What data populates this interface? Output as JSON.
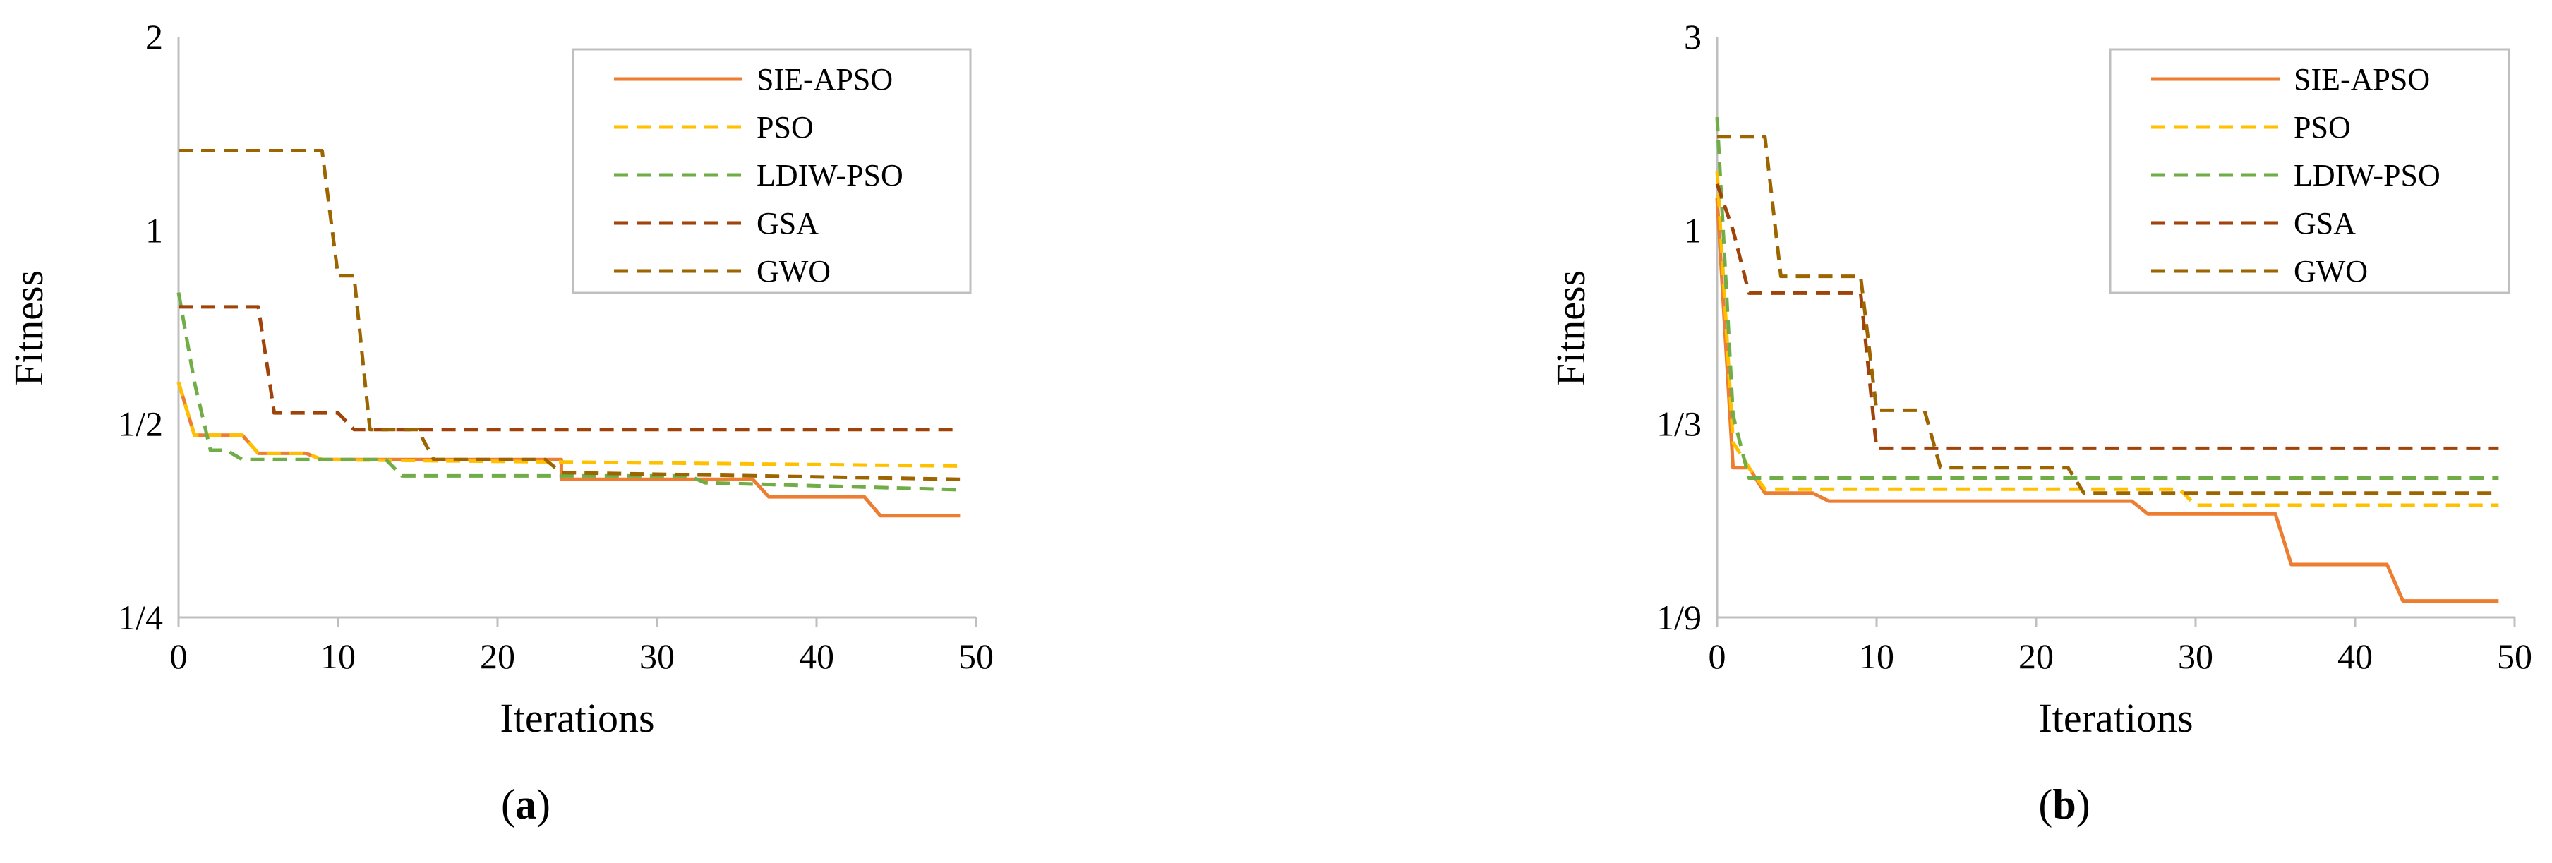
{
  "chart_data": [
    {
      "type": "line",
      "caption_open": "(",
      "caption_letter": "a",
      "caption_close": ")",
      "xlabel": "Iterations",
      "ylabel": "Fitness",
      "xlim": [
        0,
        50
      ],
      "ylim": [
        0.25,
        2
      ],
      "yscale": "log2",
      "xticks": [
        0,
        10,
        20,
        30,
        40,
        50
      ],
      "xtick_labels": [
        "0",
        "10",
        "20",
        "30",
        "40",
        "50"
      ],
      "yticks": [
        0.25,
        0.5,
        1,
        2
      ],
      "ytick_labels": [
        "1/4",
        "1/2",
        "1",
        "2"
      ],
      "grid": false,
      "legend_position": "top-right",
      "series": [
        {
          "name": "SIE-APSO",
          "color": "#ED7D31",
          "dash": "solid",
          "points": [
            [
              0,
              0.58
            ],
            [
              1,
              0.48
            ],
            [
              4,
              0.48
            ],
            [
              5,
              0.45
            ],
            [
              8,
              0.45
            ],
            [
              9,
              0.44
            ],
            [
              24,
              0.44
            ],
            [
              24,
              0.41
            ],
            [
              36,
              0.41
            ],
            [
              37,
              0.385
            ],
            [
              43,
              0.385
            ],
            [
              44,
              0.36
            ],
            [
              49,
              0.36
            ]
          ]
        },
        {
          "name": "PSO",
          "color": "#FFC000",
          "dash": "dashed",
          "points": [
            [
              0,
              0.58
            ],
            [
              1,
              0.48
            ],
            [
              4,
              0.48
            ],
            [
              5,
              0.45
            ],
            [
              8,
              0.45
            ],
            [
              9,
              0.44
            ],
            [
              49,
              0.43
            ]
          ]
        },
        {
          "name": "LDIW-PSO",
          "color": "#70AD47",
          "dash": "dashed",
          "points": [
            [
              0,
              0.8
            ],
            [
              1,
              0.58
            ],
            [
              2,
              0.455
            ],
            [
              3,
              0.455
            ],
            [
              4,
              0.44
            ],
            [
              13,
              0.44
            ],
            [
              14,
              0.415
            ],
            [
              32,
              0.415
            ],
            [
              33,
              0.405
            ],
            [
              49,
              0.395
            ]
          ]
        },
        {
          "name": "GSA",
          "color": "#A0430A",
          "dash": "dashed",
          "points": [
            [
              0,
              0.76
            ],
            [
              5,
              0.76
            ],
            [
              6,
              0.52
            ],
            [
              10,
              0.52
            ],
            [
              11,
              0.49
            ],
            [
              49,
              0.49
            ]
          ]
        },
        {
          "name": "GWO",
          "color": "#9C6500",
          "dash": "dashed",
          "points": [
            [
              0,
              1.33
            ],
            [
              9,
              1.33
            ],
            [
              10,
              0.85
            ],
            [
              11,
              0.85
            ],
            [
              12,
              0.49
            ],
            [
              15,
              0.49
            ],
            [
              16,
              0.44
            ],
            [
              23,
              0.44
            ],
            [
              24,
              0.42
            ],
            [
              49,
              0.41
            ]
          ]
        }
      ]
    },
    {
      "type": "line",
      "caption_open": "(",
      "caption_letter": "b",
      "caption_close": ")",
      "xlabel": "Iterations",
      "ylabel": "Fitness",
      "xlim": [
        0,
        50
      ],
      "ylim": [
        0.1111,
        3
      ],
      "yscale": "log3",
      "xticks": [
        0,
        10,
        20,
        30,
        40,
        50
      ],
      "xtick_labels": [
        "0",
        "10",
        "20",
        "30",
        "40",
        "50"
      ],
      "yticks": [
        0.1111,
        0.3333,
        1,
        3
      ],
      "ytick_labels": [
        "1/9",
        "1/3",
        "1",
        "3"
      ],
      "grid": false,
      "legend_position": "top-right",
      "series": [
        {
          "name": "SIE-APSO",
          "color": "#ED7D31",
          "dash": "solid",
          "points": [
            [
              0,
              1.2
            ],
            [
              1,
              0.26
            ],
            [
              2,
              0.26
            ],
            [
              3,
              0.225
            ],
            [
              6,
              0.225
            ],
            [
              7,
              0.215
            ],
            [
              26,
              0.215
            ],
            [
              27,
              0.2
            ],
            [
              35,
              0.2
            ],
            [
              36,
              0.15
            ],
            [
              42,
              0.15
            ],
            [
              43,
              0.122
            ],
            [
              49,
              0.122
            ]
          ]
        },
        {
          "name": "PSO",
          "color": "#FFC000",
          "dash": "dashed",
          "points": [
            [
              0,
              1.4
            ],
            [
              1,
              0.3
            ],
            [
              2,
              0.26
            ],
            [
              3,
              0.23
            ],
            [
              29,
              0.23
            ],
            [
              30,
              0.21
            ],
            [
              49,
              0.21
            ]
          ]
        },
        {
          "name": "LDIW-PSO",
          "color": "#70AD47",
          "dash": "dashed",
          "points": [
            [
              0,
              1.9
            ],
            [
              1,
              0.35
            ],
            [
              2,
              0.245
            ],
            [
              49,
              0.245
            ]
          ]
        },
        {
          "name": "GSA",
          "color": "#A0430A",
          "dash": "dashed",
          "points": [
            [
              0,
              1.3
            ],
            [
              1,
              1.0
            ],
            [
              2,
              0.7
            ],
            [
              9,
              0.7
            ],
            [
              10,
              0.29
            ],
            [
              49,
              0.29
            ]
          ]
        },
        {
          "name": "GWO",
          "color": "#9C6500",
          "dash": "dashed",
          "points": [
            [
              0,
              1.7
            ],
            [
              3,
              1.7
            ],
            [
              4,
              0.77
            ],
            [
              9,
              0.77
            ],
            [
              10,
              0.36
            ],
            [
              13,
              0.36
            ],
            [
              14,
              0.26
            ],
            [
              22,
              0.26
            ],
            [
              23,
              0.225
            ],
            [
              49,
              0.225
            ]
          ]
        }
      ]
    }
  ]
}
